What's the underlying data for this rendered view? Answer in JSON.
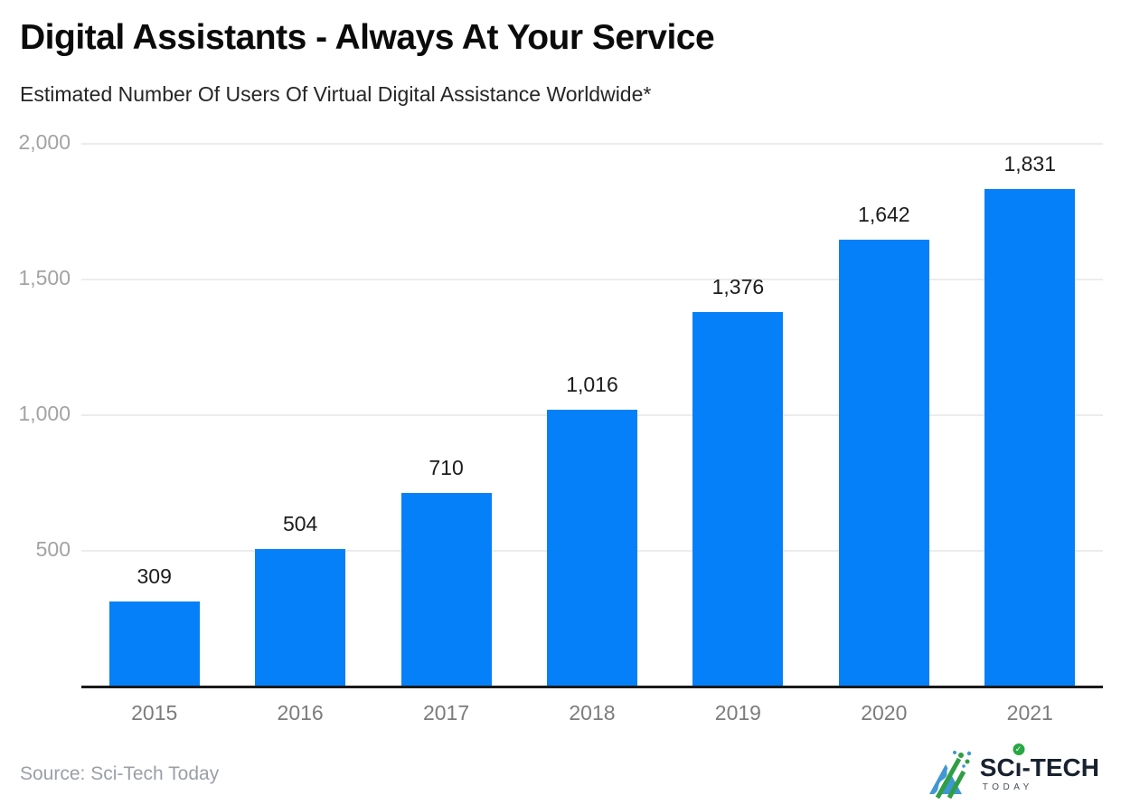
{
  "header": {
    "title": "Digital Assistants - Always At Your Service",
    "subtitle": "Estimated Number Of Users Of Virtual Digital Assistance Worldwide*"
  },
  "chart_data": {
    "type": "bar",
    "title": "Digital Assistants - Always At Your Service",
    "subtitle": "Estimated Number Of Users Of Virtual Digital Assistance Worldwide*",
    "categories": [
      "2015",
      "2016",
      "2017",
      "2018",
      "2019",
      "2020",
      "2021"
    ],
    "values": [
      309,
      504,
      710,
      1016,
      1376,
      1642,
      1831
    ],
    "value_labels": [
      "309",
      "504",
      "710",
      "1,016",
      "1,376",
      "1,642",
      "1,831"
    ],
    "xlabel": "",
    "ylabel": "",
    "ylim": [
      0,
      2000
    ],
    "yticks": [
      2000,
      1500,
      1000,
      500
    ],
    "ytick_labels": [
      "2,000",
      "1,500",
      "1,000",
      "500"
    ],
    "grid": true,
    "legend": false,
    "bar_color": "#0680f9"
  },
  "footer": {
    "source": "Source: Sci-Tech Today",
    "logo": {
      "text_sc": "SC",
      "text_i": "ı",
      "text_tech": "-TECH",
      "text_today": "TODAY",
      "check_glyph": "✓"
    }
  },
  "colors": {
    "bar": "#0680f9",
    "title": "#0b0b0b",
    "subtitle": "#262626",
    "axis_line": "#1a1a1a",
    "gridline": "#ececec",
    "x_tick_text": "#7c7c7c",
    "y_tick_text": "#a3a3a3",
    "value_label_text": "#1c1c1c",
    "source_text": "#9aa0a6",
    "logo_dark": "#18222e",
    "logo_green": "#2f9e44",
    "logo_blue": "#3f97d3",
    "logo_check_green": "#27a844"
  }
}
